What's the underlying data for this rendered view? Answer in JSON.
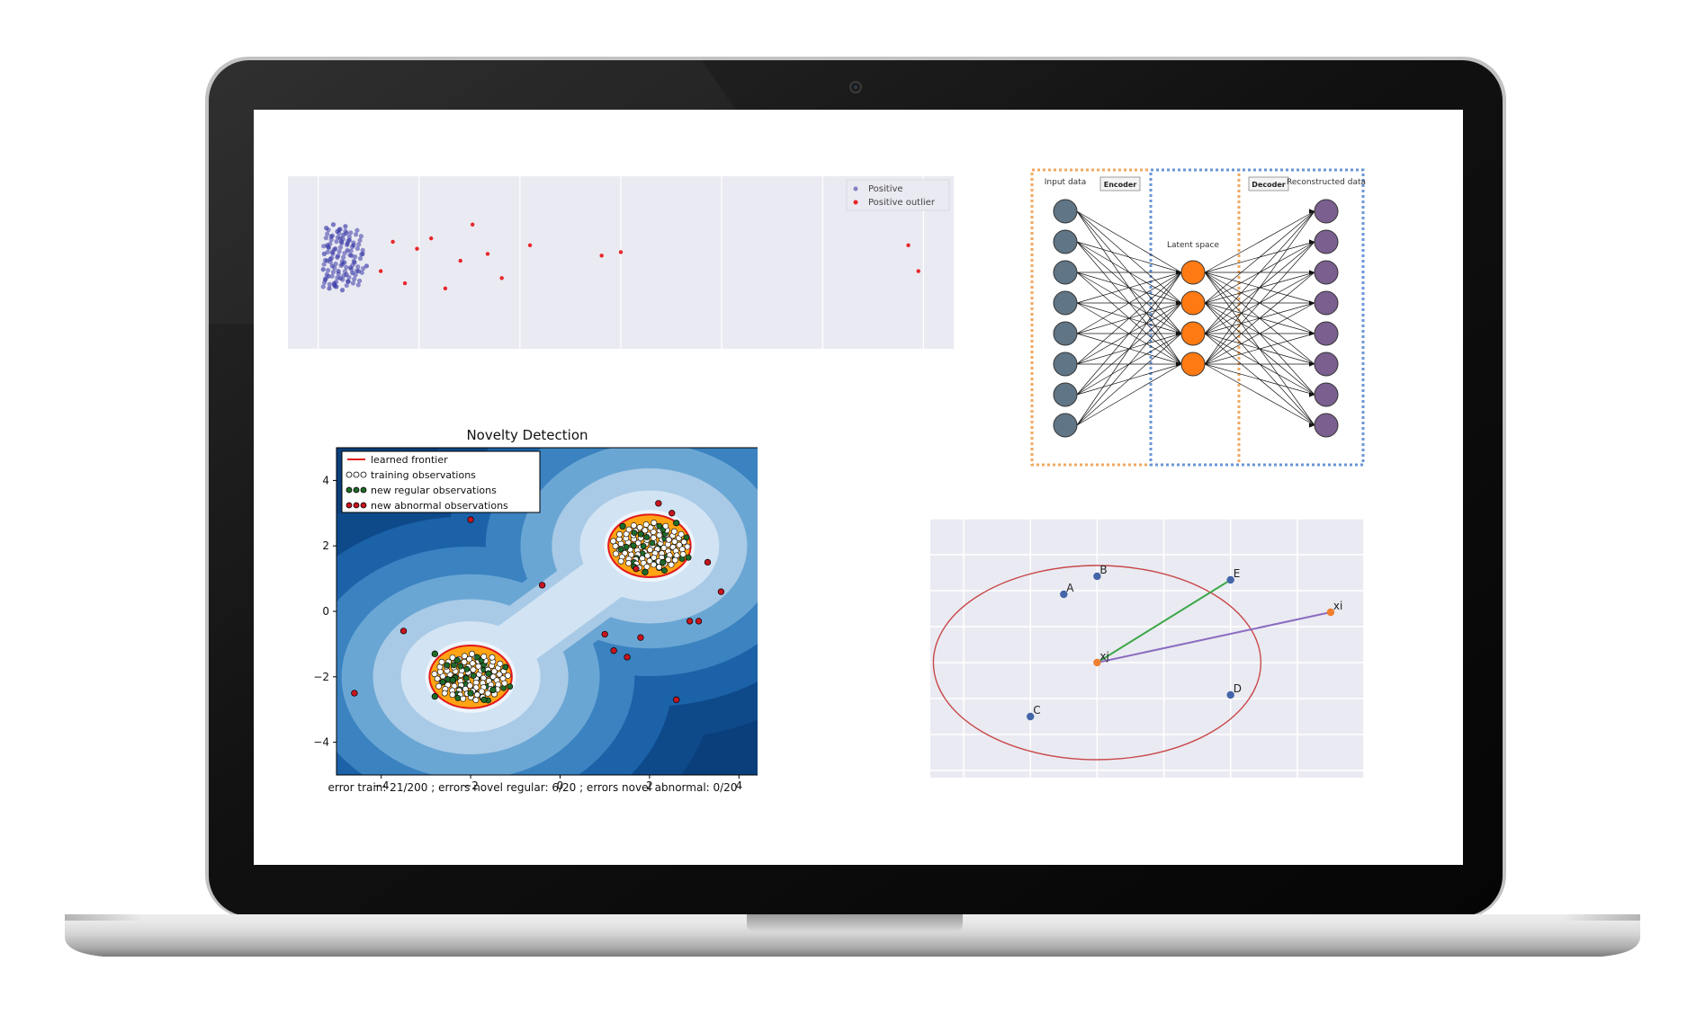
{
  "chart_data": [
    {
      "type": "scatter",
      "legend": {
        "placement": "top-right",
        "entries": [
          "Positive",
          "Positive outlier"
        ]
      },
      "grid": true,
      "colors": {
        "Positive": "#3a3aa8",
        "Positive outlier": "#e8262a",
        "background": "#eaeaf2"
      },
      "series": [
        {
          "name": "Positive",
          "x": [
            0.6,
            0.9,
            1.2,
            1.4,
            1.7,
            2.0,
            2.3,
            2.6,
            2.9,
            3.2,
            3.5,
            0.7,
            1.0,
            1.3,
            1.6,
            1.9,
            2.2,
            2.5,
            2.8,
            3.1,
            0.8,
            1.1,
            1.5,
            1.8,
            2.1,
            2.4,
            2.7,
            3.0,
            3.3,
            0.5,
            0.9,
            1.4,
            1.9,
            2.4,
            2.9,
            3.4,
            1.0,
            1.6,
            2.2,
            2.8,
            3.6,
            4.0,
            4.4,
            4.8
          ],
          "y": [
            0.55,
            0.6,
            0.52,
            0.48,
            0.58,
            0.45,
            0.62,
            0.5,
            0.57,
            0.47,
            0.6,
            0.4,
            0.42,
            0.65,
            0.38,
            0.68,
            0.41,
            0.66,
            0.43,
            0.63,
            0.7,
            0.35,
            0.72,
            0.36,
            0.69,
            0.34,
            0.71,
            0.39,
            0.54,
            0.46,
            0.51,
            0.56,
            0.53,
            0.49,
            0.61,
            0.44,
            0.59,
            0.37,
            0.64,
            0.67,
            0.5,
            0.45,
            0.55,
            0.48
          ]
        },
        {
          "name": "Positive outlier",
          "x": [
            6.2,
            7.4,
            8.6,
            9.8,
            11.2,
            12.6,
            14.1,
            15.3,
            16.8,
            18.2,
            21.0,
            28.1,
            30.0,
            58.5,
            59.5
          ],
          "y": [
            0.45,
            0.62,
            0.38,
            0.58,
            0.64,
            0.35,
            0.51,
            0.72,
            0.55,
            0.41,
            0.6,
            0.54,
            0.56,
            0.6,
            0.45
          ]
        }
      ]
    },
    {
      "type": "diagram",
      "labels": {
        "input": "Input data",
        "encoder": "Encoder",
        "latent": "Latent space",
        "decoder": "Decoder",
        "output": "Reconstructed data"
      },
      "layers": [
        8,
        4,
        8
      ],
      "colors": {
        "input": "#607585",
        "latent": "#ff7a12",
        "output": "#7a5f8f",
        "encoder_box": "#f0a860",
        "decoder_box": "#6a95d6"
      }
    },
    {
      "type": "scatter",
      "title": "Novelty Detection",
      "xlabel": "error train: 21/200 ; errors novel regular: 6/20 ; errors novel abnormal: 0/20",
      "xlim": [
        -5,
        5
      ],
      "ylim": [
        -5,
        5
      ],
      "xticks": [
        "−4",
        "−2",
        "0",
        "2",
        "4"
      ],
      "yticks": [
        "4",
        "2",
        "0",
        "−2",
        "−4"
      ],
      "legend": {
        "placement": "top-left",
        "entries": [
          "learned frontier",
          "training observations",
          "new regular observations",
          "new abnormal observations"
        ]
      },
      "colors": {
        "frontier": "#e31b1b",
        "training": "#ffffff",
        "regular": "#1f6b2a",
        "abnormal": "#c8141e",
        "inside": "#ffa414"
      },
      "centers": [
        [
          2.0,
          2.0
        ],
        [
          -2.0,
          -2.0
        ]
      ],
      "series": [
        {
          "name": "new abnormal observations",
          "x": [
            -2.0,
            -4.6,
            -3.5,
            -0.4,
            1.0,
            1.2,
            1.8,
            1.5,
            2.9,
            3.1,
            2.6,
            3.6,
            3.3,
            1.7,
            2.5,
            2.2
          ],
          "y": [
            2.8,
            -2.5,
            -0.6,
            0.8,
            -0.7,
            -1.2,
            -0.8,
            -1.4,
            -0.3,
            -0.3,
            -2.7,
            0.6,
            1.5,
            1.3,
            3.0,
            3.3
          ]
        },
        {
          "name": "new regular observations",
          "x": [
            1.4,
            2.6,
            1.9,
            2.3,
            -2.8,
            -1.7,
            -2.4,
            -2.0,
            -1.6,
            -2.8,
            -1.5,
            -2.3
          ],
          "y": [
            2.6,
            2.7,
            1.2,
            1.5,
            -1.3,
            -2.7,
            -2.1,
            -2.5,
            -1.9,
            -2.6,
            -2.4,
            -1.5
          ]
        }
      ]
    },
    {
      "type": "scatter",
      "grid": true,
      "colors": {
        "neighbor": "#4466a8",
        "query": "#f07f30",
        "circle": "#c84848",
        "line_E": "#3ea84a",
        "line_xi": "#8a6cc0",
        "background": "#eaeaf2"
      },
      "points": [
        {
          "label": "A",
          "x": 2.5,
          "y": 4.9
        },
        {
          "label": "B",
          "x": 3.0,
          "y": 5.4
        },
        {
          "label": "C",
          "x": 2.0,
          "y": 1.5
        },
        {
          "label": "D",
          "x": 5.0,
          "y": 2.1
        },
        {
          "label": "E",
          "x": 5.0,
          "y": 5.3
        },
        {
          "label": "xi",
          "x": 6.5,
          "y": 4.4
        },
        {
          "label": "xj",
          "x": 3.0,
          "y": 3.0
        }
      ]
    }
  ]
}
